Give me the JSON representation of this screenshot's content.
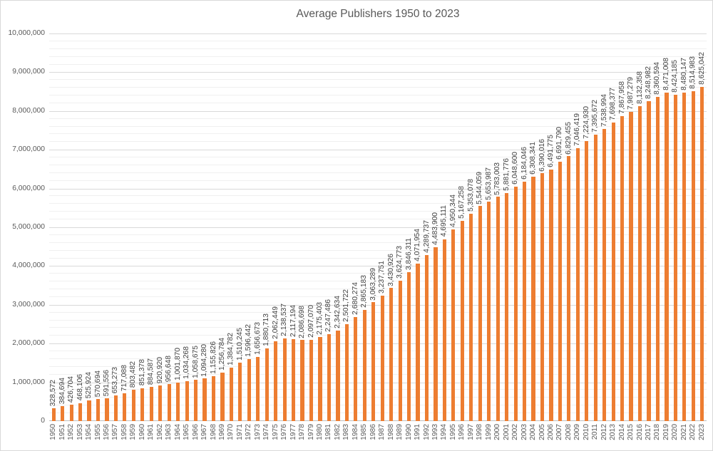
{
  "chart_data": {
    "type": "bar",
    "title": "Average Publishers 1950 to 2023",
    "xlabel": "",
    "ylabel": "",
    "ylim": [
      0,
      10000000
    ],
    "y_major_unit": 1000000,
    "y_minor_unit": 200000,
    "grid": true,
    "legend_position": "none",
    "data_labels": "rotated-vertical-above-bars",
    "x_tick_rotation": "vertical",
    "colors": {
      "bar": "#ed7d31",
      "title_text": "#595959",
      "axis_text": "#595959",
      "data_label_text": "#3f3f3f",
      "gridline_major": "#d9d9d9",
      "gridline_minor": "#f0f0f0"
    },
    "categories": [
      "1950",
      "1951",
      "1952",
      "1953",
      "1954",
      "1955",
      "1956",
      "1957",
      "1958",
      "1959",
      "1960",
      "1961",
      "1962",
      "1963",
      "1964",
      "1965",
      "1966",
      "1967",
      "1968",
      "1969",
      "1970",
      "1971",
      "1972",
      "1973",
      "1974",
      "1975",
      "1976",
      "1977",
      "1978",
      "1979",
      "1980",
      "1981",
      "1982",
      "1983",
      "1984",
      "1985",
      "1986",
      "1987",
      "1988",
      "1989",
      "1990",
      "1991",
      "1992",
      "1993",
      "1994",
      "1995",
      "1996",
      "1997",
      "1998",
      "1999",
      "2000",
      "2001",
      "2002",
      "2003",
      "2004",
      "2005",
      "2006",
      "2007",
      "2008",
      "2009",
      "2010",
      "2011",
      "2012",
      "2013",
      "2014",
      "2015",
      "2016",
      "2017",
      "2018",
      "2019",
      "2020",
      "2021",
      "2022",
      "2023"
    ],
    "values": [
      328572,
      384694,
      426704,
      468106,
      525924,
      570694,
      591556,
      653273,
      717088,
      803482,
      851378,
      884587,
      920920,
      956648,
      1001870,
      1034268,
      1058675,
      1094280,
      1155826,
      1256784,
      1384782,
      1510245,
      1596442,
      1656673,
      1880713,
      2062449,
      2138537,
      2117194,
      2086698,
      2097070,
      2175403,
      2247486,
      2342634,
      2501722,
      2680274,
      2865183,
      3063289,
      3237751,
      3430926,
      3624773,
      3846311,
      4071954,
      4289737,
      4483900,
      4695111,
      4950344,
      5167258,
      5353078,
      5544059,
      5653987,
      5783003,
      5881776,
      6048600,
      6184046,
      6308341,
      6390016,
      6491775,
      6691790,
      6829455,
      7046419,
      7224930,
      7395672,
      7538994,
      7698377,
      7867958,
      7987279,
      8132358,
      8248982,
      8360594,
      8471008,
      8424185,
      8480147,
      8514983,
      8625042
    ]
  }
}
